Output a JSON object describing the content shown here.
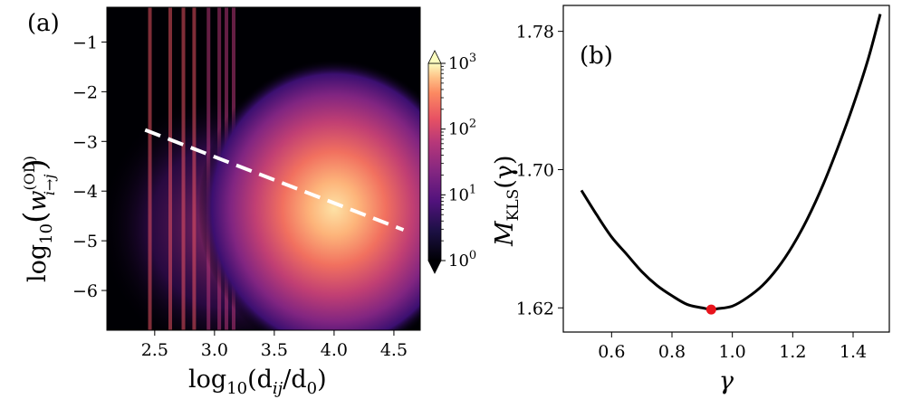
{
  "chart_data": [
    {
      "type": "heatmap",
      "panel_label": "(a)",
      "xlabel": "log10(dij/d0)",
      "ylabel": "log10(w(OD)i→j)",
      "xlabel_parts": {
        "base": "log",
        "sub": "10",
        "inner": "(d",
        "inner_sub": "ij",
        "mid": "/d",
        "mid_sub": "0",
        "close": ")"
      },
      "ylabel_parts": {
        "base": "log",
        "sub": "10",
        "open": "(",
        "w": "w",
        "sup": "(OD)",
        "wsub": "i→j",
        "close": ")"
      },
      "xlim": [
        2.1,
        4.72
      ],
      "ylim": [
        -6.8,
        -0.3
      ],
      "xticks": [
        {
          "value": 2.5,
          "label": "2.5"
        },
        {
          "value": 3.0,
          "label": "3.0"
        },
        {
          "value": 3.5,
          "label": "3.5"
        },
        {
          "value": 4.0,
          "label": "4.0"
        },
        {
          "value": 4.5,
          "label": "4.5"
        }
      ],
      "yticks": [
        {
          "value": -1,
          "label": "−1"
        },
        {
          "value": -2,
          "label": "−2"
        },
        {
          "value": -3,
          "label": "−3"
        },
        {
          "value": -4,
          "label": "−4"
        },
        {
          "value": -5,
          "label": "−5"
        },
        {
          "value": -6,
          "label": "−6"
        }
      ],
      "colorbar": {
        "scale": "log",
        "colormap": "magma",
        "range": [
          1,
          1000
        ],
        "ticks": [
          {
            "value": 1,
            "base": "10",
            "exp": "0"
          },
          {
            "value": 10,
            "base": "10",
            "exp": "1"
          },
          {
            "value": 100,
            "base": "10",
            "exp": "2"
          },
          {
            "value": 1000,
            "base": "10",
            "exp": "3"
          }
        ]
      },
      "density_peak": {
        "x": 4.0,
        "y": -4.35
      },
      "vertical_streaks_x": [
        2.46,
        2.63,
        2.74,
        2.83,
        2.95,
        3.04,
        3.1,
        3.16
      ],
      "fit_line": {
        "style": "dashed",
        "color": "#ffffff",
        "x": [
          2.42,
          4.58
        ],
        "y": [
          -2.77,
          -4.78
        ]
      }
    },
    {
      "type": "line",
      "panel_label": "(b)",
      "xlabel": "γ",
      "ylabel": "MKLS(γ)",
      "ylabel_parts": {
        "m": "M",
        "sub": "KLS",
        "arg": "(γ)"
      },
      "xlim": [
        0.44,
        1.52
      ],
      "ylim": [
        1.606,
        1.795
      ],
      "xticks": [
        {
          "value": 0.6,
          "label": "0.6"
        },
        {
          "value": 0.8,
          "label": "0.8"
        },
        {
          "value": 1.0,
          "label": "1.0"
        },
        {
          "value": 1.2,
          "label": "1.2"
        },
        {
          "value": 1.4,
          "label": "1.4"
        }
      ],
      "yticks": [
        {
          "value": 1.62,
          "label": "1.62"
        },
        {
          "value": 1.7,
          "label": "1.70"
        },
        {
          "value": 1.78,
          "label": "1.78"
        }
      ],
      "series": [
        {
          "color": "#000000",
          "x": [
            0.5,
            0.55,
            0.6,
            0.65,
            0.7,
            0.75,
            0.8,
            0.85,
            0.9,
            0.93,
            0.95,
            1.0,
            1.05,
            1.1,
            1.15,
            1.2,
            1.25,
            1.3,
            1.35,
            1.4,
            1.45,
            1.49
          ],
          "y": [
            1.688,
            1.674,
            1.661,
            1.651,
            1.641,
            1.633,
            1.627,
            1.622,
            1.62,
            1.619,
            1.6195,
            1.621,
            1.626,
            1.633,
            1.643,
            1.656,
            1.672,
            1.691,
            1.713,
            1.737,
            1.764,
            1.79
          ]
        }
      ],
      "minimum_marker": {
        "x": 0.93,
        "y": 1.619,
        "color": "#e8141c"
      }
    }
  ]
}
